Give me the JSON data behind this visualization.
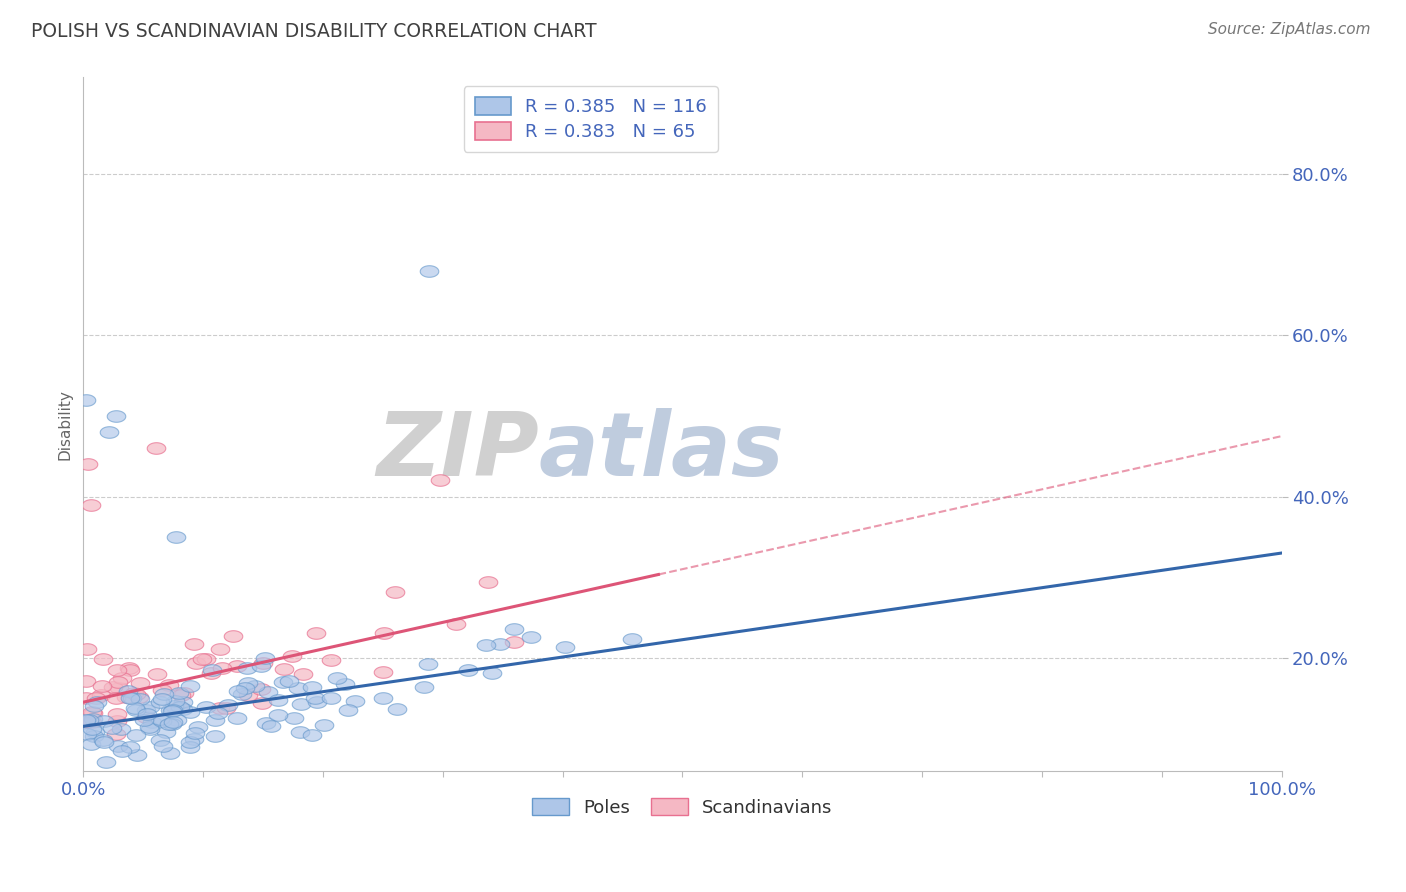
{
  "title": "POLISH VS SCANDINAVIAN DISABILITY CORRELATION CHART",
  "source": "Source: ZipAtlas.com",
  "ylabel": "Disability",
  "xlim": [
    0.0,
    1.0
  ],
  "ylim": [
    0.06,
    0.92
  ],
  "yticks": [
    0.2,
    0.4,
    0.6,
    0.8
  ],
  "ytick_labels": [
    "20.0%",
    "40.0%",
    "60.0%",
    "80.0%"
  ],
  "poles_color": "#aec6e8",
  "poles_edge_color": "#6699cc",
  "scand_color": "#f5b8c4",
  "scand_edge_color": "#e87090",
  "poles_line_color": "#3366aa",
  "scand_line_color": "#dd5577",
  "poles_R": 0.385,
  "poles_N": 116,
  "scand_R": 0.383,
  "scand_N": 65,
  "background_color": "#ffffff",
  "grid_color": "#cccccc",
  "title_color": "#404040",
  "axis_label_color": "#4466bb",
  "poles_intercept": 0.115,
  "poles_slope": 0.215,
  "scand_intercept": 0.145,
  "scand_slope": 0.33,
  "scand_line_xmax": 0.48
}
